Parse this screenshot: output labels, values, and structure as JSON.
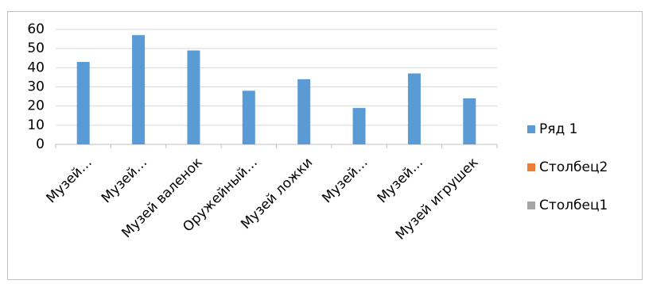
{
  "chart_data": {
    "type": "bar",
    "categories": [
      "Музей…",
      "Музей…",
      "Музей валенок",
      "Оружейный…",
      "Музей ложки",
      "Музей…",
      "Музей…",
      "Музей игрушек"
    ],
    "series": [
      {
        "name": "Ряд 1",
        "color": "#5b9bd5",
        "values": [
          43,
          57,
          49,
          28,
          34,
          19,
          37,
          24
        ]
      },
      {
        "name": "Столбец2",
        "color": "#ed7d31",
        "values": [
          null,
          null,
          null,
          null,
          null,
          null,
          null,
          null
        ]
      },
      {
        "name": "Столбец1",
        "color": "#a5a5a5",
        "values": [
          null,
          null,
          null,
          null,
          null,
          null,
          null,
          null
        ]
      }
    ],
    "ylim": [
      0,
      60
    ],
    "yticks": [
      0,
      10,
      20,
      30,
      40,
      50,
      60
    ],
    "grid": true,
    "legend": "right"
  }
}
